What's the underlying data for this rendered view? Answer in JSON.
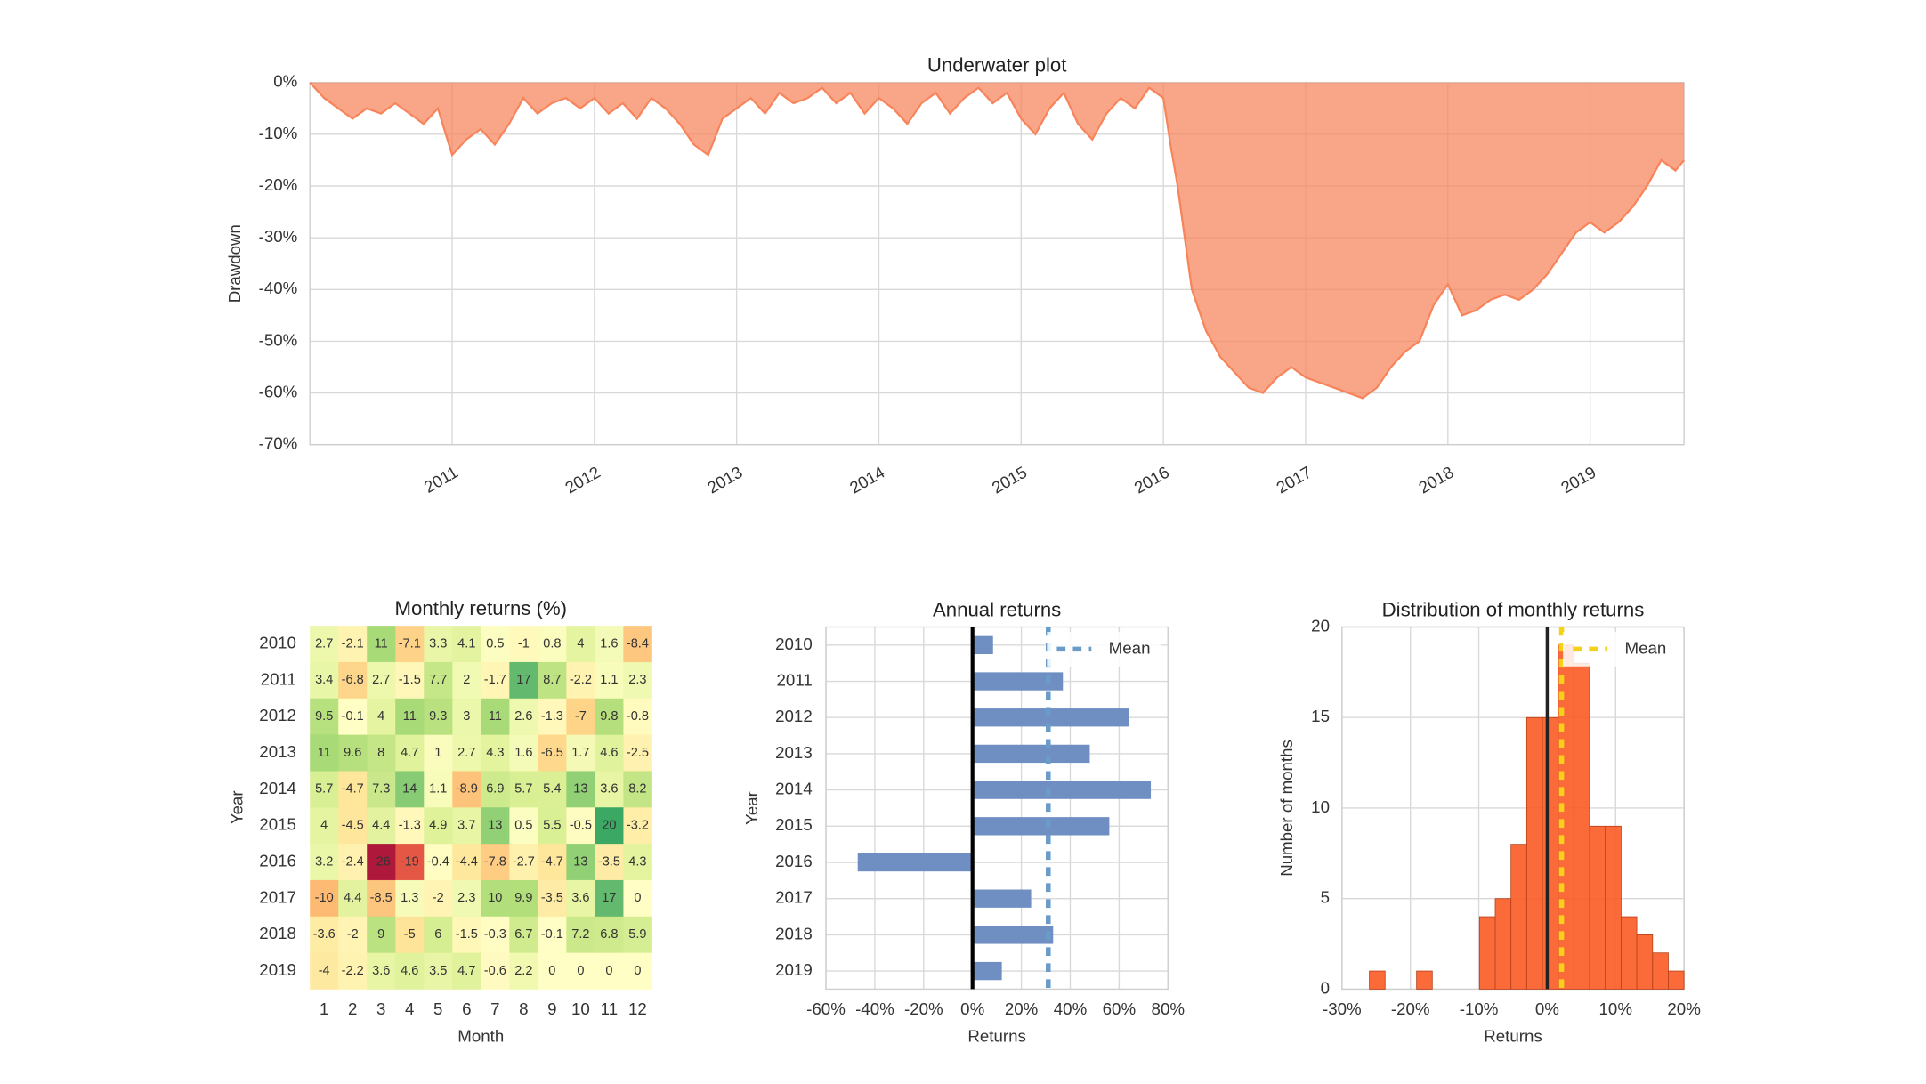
{
  "chart_data": [
    {
      "type": "area",
      "title": "Underwater plot",
      "ylabel": "Drawdown",
      "color": "#f7845a",
      "grid": true,
      "x": [
        2010.0,
        2010.1,
        2010.2,
        2010.3,
        2010.4,
        2010.5,
        2010.6,
        2010.7,
        2010.8,
        2010.9,
        2011.0,
        2011.1,
        2011.2,
        2011.3,
        2011.4,
        2011.5,
        2011.6,
        2011.7,
        2011.8,
        2011.9,
        2012.0,
        2012.1,
        2012.2,
        2012.3,
        2012.4,
        2012.5,
        2012.6,
        2012.7,
        2012.8,
        2012.9,
        2013.0,
        2013.1,
        2013.2,
        2013.3,
        2013.4,
        2013.5,
        2013.6,
        2013.7,
        2013.8,
        2013.9,
        2014.0,
        2014.1,
        2014.2,
        2014.3,
        2014.4,
        2014.5,
        2014.6,
        2014.7,
        2014.8,
        2014.9,
        2015.0,
        2015.1,
        2015.2,
        2015.3,
        2015.4,
        2015.5,
        2015.6,
        2015.7,
        2015.8,
        2015.9,
        2016.0,
        2016.05,
        2016.1,
        2016.15,
        2016.2,
        2016.3,
        2016.4,
        2016.5,
        2016.6,
        2016.7,
        2016.8,
        2016.9,
        2017.0,
        2017.1,
        2017.2,
        2017.3,
        2017.4,
        2017.5,
        2017.6,
        2017.7,
        2017.8,
        2017.9,
        2018.0,
        2018.1,
        2018.2,
        2018.3,
        2018.4,
        2018.5,
        2018.6,
        2018.7,
        2018.8,
        2018.9,
        2019.0,
        2019.1,
        2019.2,
        2019.3,
        2019.4,
        2019.5,
        2019.6,
        2019.66
      ],
      "values": [
        0,
        -3,
        -5,
        -7,
        -5,
        -6,
        -4,
        -6,
        -8,
        -5,
        -14,
        -11,
        -9,
        -12,
        -8,
        -3,
        -6,
        -4,
        -3,
        -5,
        -3,
        -6,
        -4,
        -7,
        -3,
        -5,
        -8,
        -12,
        -14,
        -7,
        -5,
        -3,
        -6,
        -2,
        -4,
        -3,
        -1,
        -4,
        -2,
        -6,
        -3,
        -5,
        -8,
        -4,
        -2,
        -6,
        -3,
        -1,
        -4,
        -2,
        -7,
        -10,
        -5,
        -2,
        -8,
        -11,
        -6,
        -3,
        -5,
        -1,
        -3,
        -12,
        -20,
        -30,
        -40,
        -48,
        -53,
        -56,
        -59,
        -60,
        -57,
        -55,
        -57,
        -58,
        -59,
        -60,
        -61,
        -59,
        -55,
        -52,
        -50,
        -43,
        -39,
        -45,
        -44,
        -42,
        -41,
        -42,
        -40,
        -37,
        -33,
        -29,
        -27,
        -29,
        -27,
        -24,
        -20,
        -15,
        -17,
        -15
      ],
      "xlim": [
        2010.0,
        2019.66
      ],
      "xticks": [
        2011,
        2012,
        2013,
        2014,
        2015,
        2016,
        2017,
        2018,
        2019
      ],
      "ylim": [
        -70,
        0
      ],
      "yticks": [
        {
          "value": 0,
          "label": "0%"
        },
        {
          "value": -10,
          "label": "-10%"
        },
        {
          "value": -20,
          "label": "-20%"
        },
        {
          "value": -30,
          "label": "-30%"
        },
        {
          "value": -40,
          "label": "-40%"
        },
        {
          "value": -50,
          "label": "-50%"
        },
        {
          "value": -60,
          "label": "-60%"
        },
        {
          "value": -70,
          "label": "-70%"
        }
      ]
    },
    {
      "type": "heatmap",
      "title": "Monthly returns (%)",
      "xlabel": "Month",
      "ylabel": "Year",
      "colormap": "RdYlGn",
      "x": [
        1,
        2,
        3,
        4,
        5,
        6,
        7,
        8,
        9,
        10,
        11,
        12
      ],
      "y": [
        2010,
        2011,
        2012,
        2013,
        2014,
        2015,
        2016,
        2017,
        2018,
        2019
      ],
      "values": [
        [
          2.7,
          -2.1,
          11,
          -7.1,
          3.3,
          4.1,
          0.5,
          -1,
          0.8,
          4,
          1.6,
          -8.4
        ],
        [
          3.4,
          -6.8,
          2.7,
          -1.5,
          7.7,
          2,
          -1.7,
          17,
          8.7,
          -2.2,
          1.1,
          2.3
        ],
        [
          9.5,
          -0.1,
          4,
          11,
          9.3,
          3,
          11,
          2.6,
          -1.3,
          -7,
          9.8,
          -0.8
        ],
        [
          11,
          9.6,
          8,
          4.7,
          1,
          2.7,
          4.3,
          1.6,
          -6.5,
          1.7,
          4.6,
          -2.5
        ],
        [
          5.7,
          -4.7,
          7.3,
          14,
          1.1,
          -8.9,
          6.9,
          5.7,
          5.4,
          13,
          3.6,
          8.2
        ],
        [
          4,
          -4.5,
          4.4,
          -1.3,
          4.9,
          3.7,
          13,
          0.5,
          5.5,
          -0.5,
          20,
          -3.2
        ],
        [
          3.2,
          -2.4,
          -26,
          -19,
          -0.4,
          -4.4,
          -7.8,
          -2.7,
          -4.7,
          13,
          -3.5,
          4.3
        ],
        [
          -10,
          4.4,
          -8.5,
          1.3,
          -2,
          2.3,
          10,
          9.9,
          -3.5,
          3.6,
          17,
          0
        ],
        [
          -3.6,
          -2,
          9,
          -5,
          6,
          -1.5,
          -0.3,
          6.7,
          -0.1,
          7.2,
          6.8,
          5.9
        ],
        [
          -4,
          -2.2,
          3.6,
          4.6,
          3.5,
          4.7,
          -0.6,
          2.2,
          0,
          0,
          0,
          0
        ]
      ]
    },
    {
      "type": "barh",
      "title": "Annual returns",
      "xlabel": "Returns",
      "ylabel": "Year",
      "color": "#6f8fc3",
      "grid": true,
      "legend": "upper right",
      "categories": [
        2010,
        2011,
        2012,
        2013,
        2014,
        2015,
        2016,
        2017,
        2018,
        2019
      ],
      "values": [
        8.4,
        37,
        64,
        48,
        73,
        56,
        -47,
        24,
        33,
        12
      ],
      "mean": {
        "name": "Mean",
        "value": 31,
        "color": "#6b9bc8"
      },
      "xlim": [
        -60,
        80
      ],
      "xticks": [
        {
          "value": -60,
          "label": "-60%"
        },
        {
          "value": -40,
          "label": "-40%"
        },
        {
          "value": -20,
          "label": "-20%"
        },
        {
          "value": 0,
          "label": "0%"
        },
        {
          "value": 20,
          "label": "20%"
        },
        {
          "value": 40,
          "label": "40%"
        },
        {
          "value": 60,
          "label": "60%"
        },
        {
          "value": 80,
          "label": "80%"
        }
      ]
    },
    {
      "type": "histogram",
      "title": "Distribution of monthly returns",
      "xlabel": "Returns",
      "ylabel": "Number of months",
      "color": "#fb5a24",
      "grid": true,
      "legend": "upper right",
      "bins": [
        -26,
        -23.7,
        -21.4,
        -19.1,
        -16.8,
        -14.5,
        -12.2,
        -9.9,
        -7.6,
        -5.3,
        -3,
        -0.7,
        1.6,
        3.9,
        6.2,
        8.5,
        10.8,
        13.1,
        15.4,
        17.7,
        20
      ],
      "values": [
        1,
        0,
        0,
        1,
        0,
        0,
        0,
        4,
        5,
        8,
        15,
        15,
        19,
        18,
        9,
        9,
        4,
        3,
        2,
        1
      ],
      "mean": {
        "name": "Mean",
        "value": 2.1,
        "color": "#f5d21a"
      },
      "xlim": [
        -30,
        20
      ],
      "xticks": [
        {
          "value": -30,
          "label": "-30%"
        },
        {
          "value": -20,
          "label": "-20%"
        },
        {
          "value": -10,
          "label": "-10%"
        },
        {
          "value": 0,
          "label": "0%"
        },
        {
          "value": 10,
          "label": "10%"
        },
        {
          "value": 20,
          "label": "20%"
        }
      ],
      "ylim": [
        0,
        20
      ],
      "yticks": [
        0,
        5,
        10,
        15,
        20
      ]
    }
  ]
}
